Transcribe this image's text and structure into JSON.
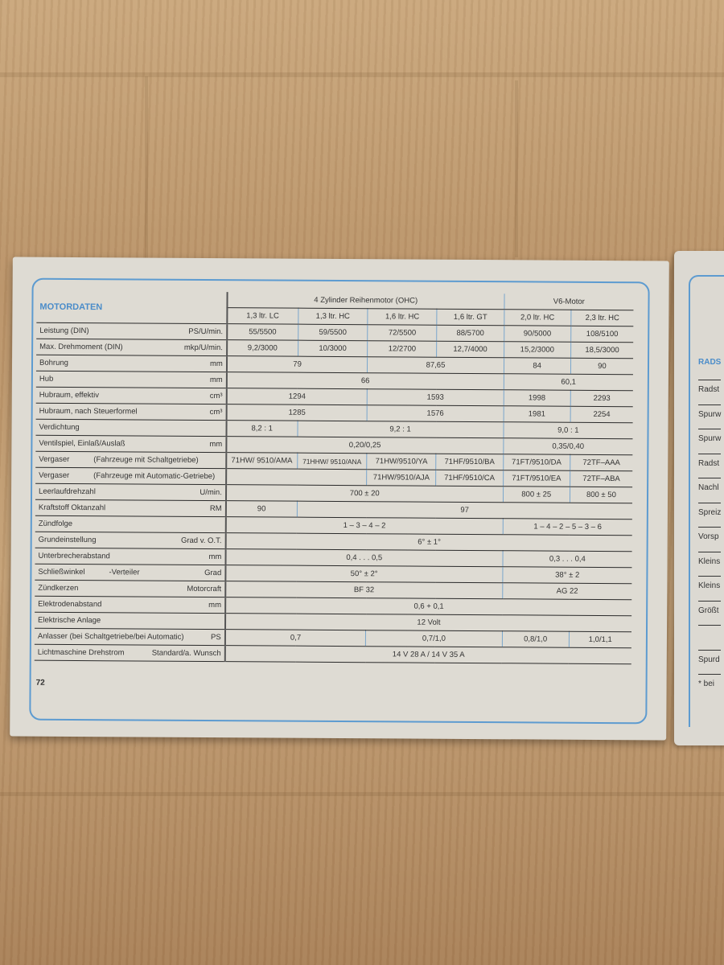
{
  "left_page": {
    "title": "MOTORDATEN",
    "page_number": "72",
    "group_headers": [
      {
        "label": "4 Zylinder Reihenmotor (OHC)",
        "span": 4
      },
      {
        "label": "V6-Motor",
        "span": 2
      }
    ],
    "columns": [
      "1,3 ltr. LC",
      "1,3 ltr. HC",
      "1,6 ltr. HC",
      "1,6 ltr. GT",
      "2,0 ltr. HC",
      "2,3 ltr. HC"
    ],
    "rows": [
      {
        "label": "Leistung (DIN)",
        "note": "",
        "unit": "PS/U/min.",
        "cells": [
          {
            "v": "55/5500",
            "span": 1
          },
          {
            "v": "59/5500",
            "span": 1
          },
          {
            "v": "72/5500",
            "span": 1
          },
          {
            "v": "88/5700",
            "span": 1
          },
          {
            "v": "90/5000",
            "span": 1
          },
          {
            "v": "108/5100",
            "span": 1
          }
        ]
      },
      {
        "label": "Max. Drehmoment (DIN)",
        "note": "",
        "unit": "mkp/U/min.",
        "cells": [
          {
            "v": "9,2/3000",
            "span": 1
          },
          {
            "v": "10/3000",
            "span": 1
          },
          {
            "v": "12/2700",
            "span": 1
          },
          {
            "v": "12,7/4000",
            "span": 1
          },
          {
            "v": "15,2/3000",
            "span": 1
          },
          {
            "v": "18,5/3000",
            "span": 1
          }
        ]
      },
      {
        "label": "Bohrung",
        "note": "",
        "unit": "mm",
        "cells": [
          {
            "v": "79",
            "span": 2
          },
          {
            "v": "87,65",
            "span": 2
          },
          {
            "v": "84",
            "span": 1
          },
          {
            "v": "90",
            "span": 1
          }
        ]
      },
      {
        "label": "Hub",
        "note": "",
        "unit": "mm",
        "cells": [
          {
            "v": "66",
            "span": 4
          },
          {
            "v": "60,1",
            "span": 2
          }
        ]
      },
      {
        "label": "Hubraum, effektiv",
        "note": "",
        "unit": "cm³",
        "cells": [
          {
            "v": "1294",
            "span": 2
          },
          {
            "v": "1593",
            "span": 2
          },
          {
            "v": "1998",
            "span": 1
          },
          {
            "v": "2293",
            "span": 1
          }
        ]
      },
      {
        "label": "Hubraum, nach Steuerformel",
        "note": "",
        "unit": "cm³",
        "cells": [
          {
            "v": "1285",
            "span": 2
          },
          {
            "v": "1576",
            "span": 2
          },
          {
            "v": "1981",
            "span": 1
          },
          {
            "v": "2254",
            "span": 1
          }
        ]
      },
      {
        "label": "Verdichtung",
        "note": "",
        "unit": "",
        "cells": [
          {
            "v": "8,2 : 1",
            "span": 1
          },
          {
            "v": "9,2 : 1",
            "span": 3
          },
          {
            "v": "9,0 : 1",
            "span": 2
          }
        ]
      },
      {
        "label": "Ventilspiel, Einlaß/Auslaß",
        "note": "",
        "unit": "mm",
        "cells": [
          {
            "v": "0,20/0,25",
            "span": 4
          },
          {
            "v": "0,35/0,40",
            "span": 2
          }
        ]
      },
      {
        "label": "Vergaser",
        "note": "(Fahrzeuge mit Schaltgetriebe)",
        "unit": "",
        "cells": [
          {
            "v": "71HW/ 9510/AMA",
            "span": 1
          },
          {
            "v": "71HHW/ 9510/ANA",
            "span": 1
          },
          {
            "v": "71HW/9510/YA",
            "span": 1
          },
          {
            "v": "71HF/9510/BA",
            "span": 1
          },
          {
            "v": "71FT/9510/DA",
            "span": 1
          },
          {
            "v": "72TF–AAA",
            "span": 1
          }
        ]
      },
      {
        "label": "Vergaser",
        "note": "(Fahrzeuge mit Automatic-Getriebe)",
        "unit": "",
        "cells": [
          {
            "v": "",
            "span": 2
          },
          {
            "v": "71HW/9510/AJA",
            "span": 1
          },
          {
            "v": "71HF/9510/CA",
            "span": 1
          },
          {
            "v": "71FT/9510/EA",
            "span": 1
          },
          {
            "v": "72TF–ABA",
            "span": 1
          }
        ]
      },
      {
        "label": "Leerlaufdrehzahl",
        "note": "",
        "unit": "U/min.",
        "cells": [
          {
            "v": "700 ± 20",
            "span": 4
          },
          {
            "v": "800 ± 25",
            "span": 1
          },
          {
            "v": "800 ± 50",
            "span": 1
          }
        ]
      },
      {
        "label": "Kraftstoff   Oktanzahl",
        "note": "",
        "unit": "RM",
        "cells": [
          {
            "v": "90",
            "span": 1
          },
          {
            "v": "97",
            "span": 5
          }
        ]
      },
      {
        "label": "Zündfolge",
        "note": "",
        "unit": "",
        "cells": [
          {
            "v": "1 – 3 – 4 – 2",
            "span": 4
          },
          {
            "v": "1 – 4 – 2 – 5 – 3 – 6",
            "span": 2
          }
        ]
      },
      {
        "label": "Grundeinstellung",
        "note": "",
        "unit": "Grad v. O.T.",
        "cells": [
          {
            "v": "6° ± 1°",
            "span": 6
          }
        ]
      },
      {
        "label": "Unterbrecherabstand",
        "note": "",
        "unit": "mm",
        "cells": [
          {
            "v": "0,4 . . . 0,5",
            "span": 4
          },
          {
            "v": "0,3 . . . 0,4",
            "span": 2
          }
        ]
      },
      {
        "label": "Schließwinkel",
        "note": "-Verteiler",
        "unit": "Grad",
        "cells": [
          {
            "v": "50° ± 2°",
            "span": 4
          },
          {
            "v": "38° ± 2",
            "span": 2
          }
        ]
      },
      {
        "label": "Zündkerzen",
        "note": "",
        "unit": "Motorcraft",
        "cells": [
          {
            "v": "BF 32",
            "span": 4
          },
          {
            "v": "AG 22",
            "span": 2
          }
        ]
      },
      {
        "label": "Elektrodenabstand",
        "note": "",
        "unit": "mm",
        "cells": [
          {
            "v": "0,6 + 0,1",
            "span": 6
          }
        ]
      },
      {
        "label": "Elektrische Anlage",
        "note": "",
        "unit": "",
        "cells": [
          {
            "v": "12 Volt",
            "span": 6
          }
        ]
      },
      {
        "label": "Anlasser (bei Schaltgetriebe/bei Automatic)",
        "note": "",
        "unit": "PS",
        "cells": [
          {
            "v": "0,7",
            "span": 2
          },
          {
            "v": "0,7/1,0",
            "span": 2
          },
          {
            "v": "0,8/1,0",
            "span": 1
          },
          {
            "v": "1,0/1,1",
            "span": 1
          }
        ]
      },
      {
        "label": "Lichtmaschine Drehstrom",
        "note": "",
        "unit": "Standard/a. Wunsch",
        "cells": [
          {
            "v": "14 V 28 A / 14 V 35 A",
            "span": 6
          }
        ]
      }
    ]
  },
  "right_page": {
    "title": "RADS",
    "items": [
      "Radst",
      "Spurw",
      "Spurw",
      "Radst",
      "Nachl",
      "Spreiz",
      "Vorsp",
      "Kleins",
      "Kleins",
      "Größt",
      "",
      "Spurd",
      "* bei"
    ]
  },
  "colors": {
    "accent": "#4a8cc9",
    "frame": "#5d9bd0"
  }
}
